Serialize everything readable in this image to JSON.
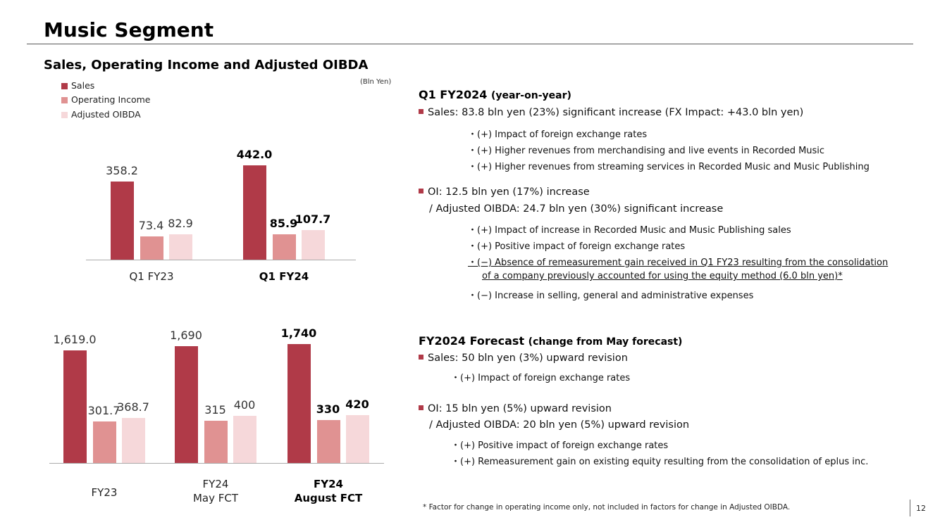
{
  "title": "Music Segment",
  "subtitle": "Sales, Operating Income and Adjusted OIBDA",
  "unit": "(Bln Yen)",
  "colors": {
    "sales": "#B03A48",
    "oi": "#E09292",
    "oibda": "#F6D8DA",
    "accent": "#B03A48"
  },
  "chart_data": [
    {
      "type": "bar",
      "title": "Sales, Operating Income and Adjusted OIBDA",
      "ylabel": "Bln Yen",
      "legend": [
        "Sales",
        "Operating Income",
        "Adjusted OIBDA"
      ],
      "legend_position": "top-left",
      "categories": [
        "Q1 FY23",
        "Q1 FY24"
      ],
      "series": [
        {
          "name": "Sales",
          "values": [
            358.2,
            442.0
          ],
          "labels": [
            "358.2",
            "442.0"
          ]
        },
        {
          "name": "Operating Income",
          "values": [
            73.4,
            85.9
          ],
          "labels": [
            "73.4",
            "85.9"
          ]
        },
        {
          "name": "Adjusted OIBDA",
          "values": [
            82.9,
            107.7
          ],
          "labels": [
            "82.9",
            "107.7"
          ]
        }
      ]
    },
    {
      "type": "bar",
      "categories": [
        "FY23",
        "FY24 May FCT",
        "FY24 August FCT"
      ],
      "category_lines": [
        [
          "FY23"
        ],
        [
          "FY24",
          "May FCT"
        ],
        [
          "FY24",
          "August FCT"
        ]
      ],
      "series": [
        {
          "name": "Sales",
          "values": [
            1619.0,
            1690,
            1740
          ],
          "labels": [
            "1,619.0",
            "1,690",
            "1,740"
          ]
        },
        {
          "name": "Operating Income",
          "values": [
            301.7,
            315,
            330
          ],
          "labels": [
            "301.7",
            "315",
            "330"
          ]
        },
        {
          "name": "Adjusted OIBDA",
          "values": [
            368.7,
            400,
            420
          ],
          "labels": [
            "368.7",
            "400",
            "420"
          ]
        }
      ]
    }
  ],
  "right": {
    "q1_heading": "Q1 FY2024",
    "q1_heading_suffix": "(year-on-year)",
    "sales_line": "Sales: 83.8 bln yen (23%) significant increase (FX Impact: +43.0 bln yen)",
    "sales_factors": [
      "・(+) Impact of foreign exchange rates",
      "・(+) Higher revenues from merchandising and live events in Recorded Music",
      "・(+) Higher revenues from streaming services in Recorded Music and Music Publishing"
    ],
    "oi_line": "OI: 12.5 bln yen (17%) increase",
    "oibda_line": "/ Adjusted OIBDA: 24.7 bln yen (30%) significant increase",
    "oi_factors": [
      "・(+) Impact of increase in Recorded Music and Music Publishing sales",
      "・(+) Positive impact of foreign exchange rates",
      "・(−) Absence of remeasurement gain received in Q1 FY23 resulting from the consolidation",
      "of a company previously accounted for using the equity method (6.0 bln yen)*",
      "・(−) Increase in selling, general and administrative expenses"
    ],
    "fc_heading": "FY2024 Forecast",
    "fc_heading_suffix": "(change from May forecast)",
    "fc_sales_line": "Sales: 50 bln yen (3%) upward revision",
    "fc_sales_factor": "・(+) Impact of foreign exchange rates",
    "fc_oi_line": "OI: 15 bln yen (5%) upward revision",
    "fc_oibda_line": "/ Adjusted OIBDA: 20 bln yen (5%) upward revision",
    "fc_factors": [
      "・(+) Positive impact of foreign exchange rates",
      "・(+) Remeasurement gain on existing equity resulting from the consolidation of eplus inc."
    ]
  },
  "footnote": "* Factor for change in operating income only, not included in factors for change in Adjusted OIBDA.",
  "page_number": "12"
}
